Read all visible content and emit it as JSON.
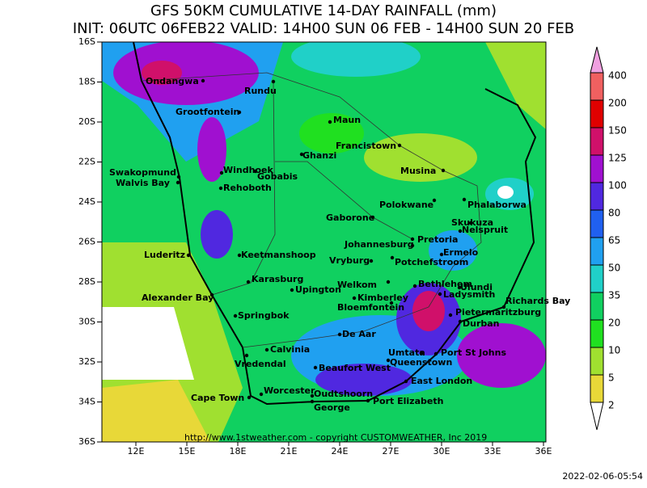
{
  "header": {
    "title": "GFS 50KM CUMULATIVE 14-DAY RAINFALL (mm)",
    "subtitle": "INIT: 06UTC 06FEB22  VALID: 14H00 SUN 06 FEB - 14H00 SUN 20 FEB"
  },
  "map": {
    "lat_labels": [
      "16S",
      "18S",
      "20S",
      "22S",
      "24S",
      "26S",
      "28S",
      "30S",
      "32S",
      "34S",
      "36S"
    ],
    "lon_labels": [
      "12E",
      "15E",
      "18E",
      "21E",
      "24E",
      "27E",
      "30E",
      "33E",
      "36E"
    ],
    "cities": [
      "Ondangwa",
      "Rundu",
      "Grootfontein",
      "Maun",
      "Francistown",
      "Ghanzi",
      "Swakopmund",
      "Walvis Bay",
      "Windhoek",
      "Gobabis",
      "Rehoboth",
      "Musina",
      "Polokwane",
      "Phalaborwa",
      "Gaborone",
      "Skukuza",
      "Nelspruit",
      "Pretoria",
      "Johannesburg",
      "Luderitz",
      "Keetmanshoop",
      "Ermelo",
      "Vryburg",
      "Potchefstroom",
      "Karasburg",
      "Upington",
      "Welkom",
      "Bethlehem",
      "Ulundi",
      "Ladysmith",
      "Alexander Bay",
      "Kimberley",
      "Richards Bay",
      "Bloemfontein",
      "Springbok",
      "Pietermaritzburg",
      "Durban",
      "De Aar",
      "Calvinia",
      "Umtata",
      "Port St Johns",
      "Queenstown",
      "Vredendal",
      "Beaufort West",
      "East London",
      "Worcester",
      "Oudtshoorn",
      "Cape Town",
      "Port Elizabeth",
      "George"
    ],
    "credit": "http://www.1stweather.com - copyright CUSTOMWEATHER, Inc 2019"
  },
  "legend": {
    "levels": [
      {
        "value": 400,
        "color": "#f0a0e0"
      },
      {
        "value": 200,
        "color": "#f06060"
      },
      {
        "value": 150,
        "color": "#e00000"
      },
      {
        "value": 125,
        "color": "#d0106a"
      },
      {
        "value": 100,
        "color": "#a010d0"
      },
      {
        "value": 80,
        "color": "#5028e0"
      },
      {
        "value": 65,
        "color": "#2060f0"
      },
      {
        "value": 50,
        "color": "#20a0f0"
      },
      {
        "value": 35,
        "color": "#20d0c8"
      },
      {
        "value": 20,
        "color": "#10d060"
      },
      {
        "value": 10,
        "color": "#20e020"
      },
      {
        "value": 5,
        "color": "#a0e030"
      },
      {
        "value": 2,
        "color": "#e8d838"
      }
    ]
  },
  "timestamp": "2022-02-06-05:54"
}
